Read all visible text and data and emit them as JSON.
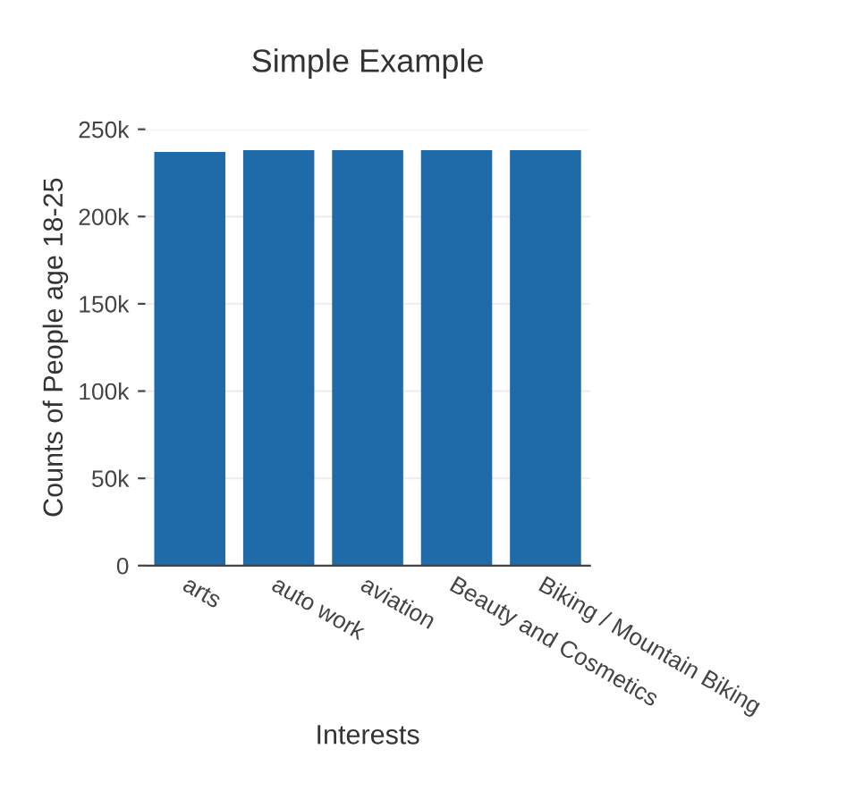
{
  "chart_data": {
    "type": "bar",
    "title": "Simple Example",
    "xlabel": "Interests",
    "ylabel": "Counts of People age 18-25",
    "categories": [
      "arts",
      "auto work",
      "aviation",
      "Beauty and Cosmetics",
      "Biking / Mountain Biking"
    ],
    "values": [
      237000,
      238000,
      238000,
      238000,
      238000
    ],
    "color": "#1f6aa8",
    "ylim": [
      0,
      250000
    ],
    "yticks": [
      {
        "value": 0,
        "label": "0"
      },
      {
        "value": 50000,
        "label": "50k"
      },
      {
        "value": 100000,
        "label": "100k"
      },
      {
        "value": 150000,
        "label": "150k"
      },
      {
        "value": 200000,
        "label": "200k"
      },
      {
        "value": 250000,
        "label": "250k"
      }
    ],
    "grid": "y"
  }
}
